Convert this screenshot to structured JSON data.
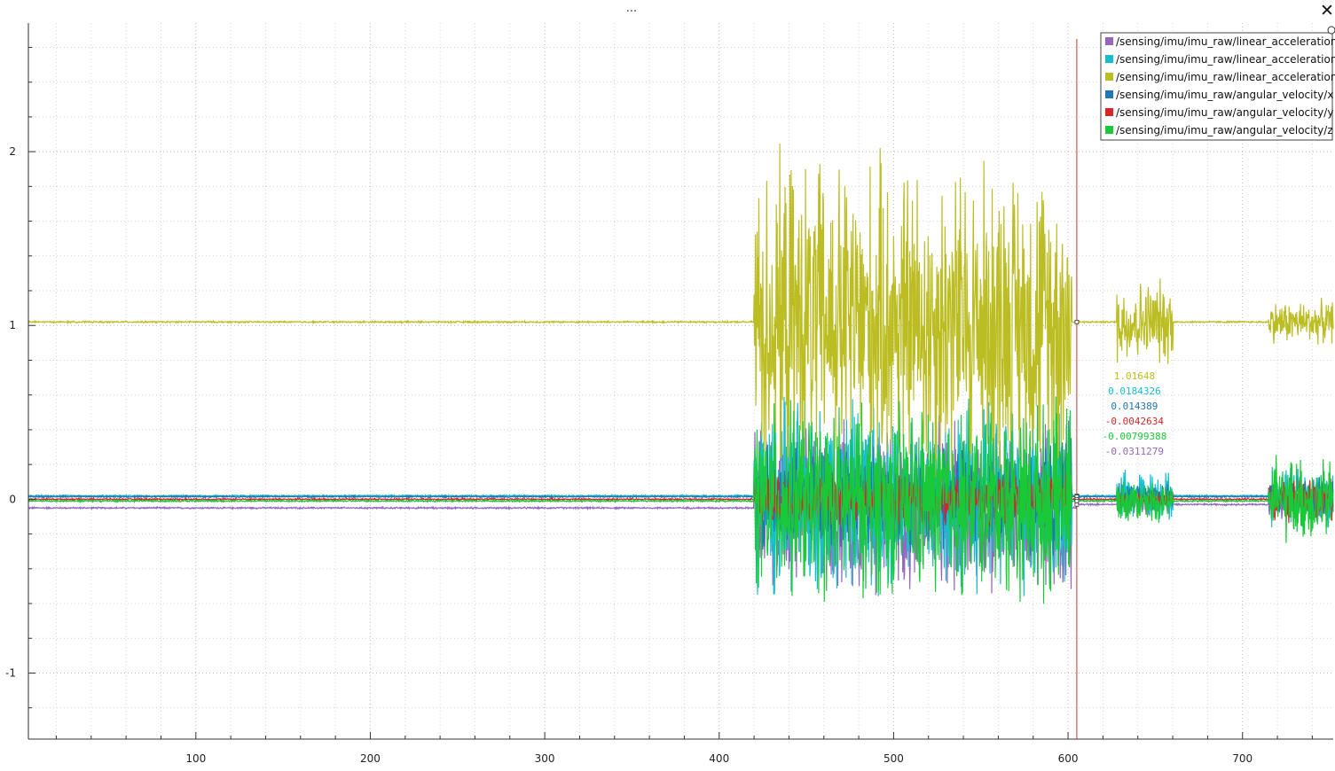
{
  "window": {
    "handle_label": "...",
    "close_label": "✕"
  },
  "chart_data": {
    "type": "line",
    "title": "",
    "xlabel": "",
    "ylabel": "",
    "xlim": [
      4,
      752
    ],
    "ylim": [
      -1.38,
      2.74
    ],
    "x_ticks": [
      100,
      200,
      300,
      400,
      500,
      600,
      700
    ],
    "y_ticks": [
      -1,
      0,
      1,
      2
    ],
    "grid": true,
    "legend_position": "top-right",
    "cursor": {
      "x": 605,
      "readouts": [
        {
          "series": "/sensing/imu/imu_raw/linear_acceleration/z",
          "text": "1.01648",
          "color": "#bcbd22"
        },
        {
          "series": "/sensing/imu/imu_raw/linear_acceleration/y",
          "text": "0.0184326",
          "color": "#17becf"
        },
        {
          "series": "/sensing/imu/imu_raw/angular_velocity/x",
          "text": "0.014389",
          "color": "#1f77b4"
        },
        {
          "series": "/sensing/imu/imu_raw/angular_velocity/y",
          "text": "-0.0042634",
          "color": "#d62728"
        },
        {
          "series": "/sensing/imu/imu_raw/angular_velocity/z",
          "text": "-0.00799388",
          "color": "#1ac938"
        },
        {
          "series": "/sensing/imu/imu_raw/linear_acceleration/x",
          "text": "-0.0311279",
          "color": "#9467bd"
        }
      ]
    },
    "series": [
      {
        "name": "/sensing/imu/imu_raw/linear_acceleration/x",
        "color": "#9467bd",
        "baseline_before": -0.05,
        "baseline_after": -0.03,
        "active_ranges": [
          [
            420,
            602,
            0.4
          ],
          [
            628,
            660,
            0.05
          ],
          [
            715,
            752,
            0.08
          ]
        ]
      },
      {
        "name": "/sensing/imu/imu_raw/linear_acceleration/y",
        "color": "#17becf",
        "baseline_before": 0.02,
        "baseline_after": 0.02,
        "active_ranges": [
          [
            420,
            602,
            0.45
          ],
          [
            628,
            660,
            0.12
          ],
          [
            715,
            752,
            0.15
          ]
        ]
      },
      {
        "name": "/sensing/imu/imu_raw/linear_acceleration/z",
        "color": "#bcbd22",
        "baseline_before": 1.02,
        "baseline_after": 1.02,
        "active_ranges": [
          [
            420,
            602,
            0.75
          ],
          [
            628,
            660,
            0.2
          ],
          [
            715,
            752,
            0.1
          ]
        ]
      },
      {
        "name": "/sensing/imu/imu_raw/angular_velocity/x",
        "color": "#1f77b4",
        "baseline_before": 0.015,
        "baseline_after": 0.015,
        "active_ranges": [
          [
            420,
            602,
            0.25
          ],
          [
            628,
            660,
            0.06
          ],
          [
            715,
            752,
            0.1
          ]
        ]
      },
      {
        "name": "/sensing/imu/imu_raw/angular_velocity/y",
        "color": "#d62728",
        "baseline_before": 0.0,
        "baseline_after": 0.0,
        "active_ranges": [
          [
            420,
            602,
            0.12
          ],
          [
            628,
            660,
            0.03
          ],
          [
            715,
            752,
            0.1
          ]
        ]
      },
      {
        "name": "/sensing/imu/imu_raw/angular_velocity/z",
        "color": "#1ac938",
        "baseline_before": -0.01,
        "baseline_after": -0.01,
        "active_ranges": [
          [
            420,
            602,
            0.45
          ],
          [
            628,
            660,
            0.1
          ],
          [
            715,
            752,
            0.2
          ]
        ]
      }
    ]
  }
}
